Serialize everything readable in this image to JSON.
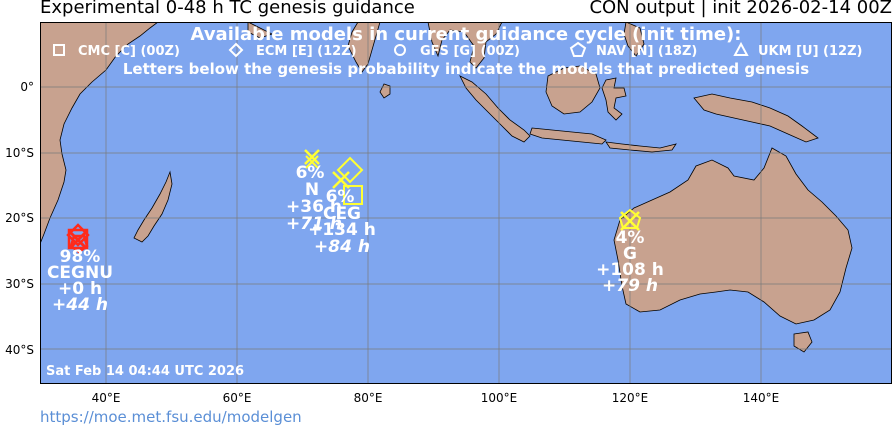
{
  "title": {
    "left": "Experimental 0-48 h TC genesis guidance",
    "right": "CON output | init 2026-02-14 00Z"
  },
  "legend": {
    "heading": "Available models in current guidance cycle (init time):",
    "models": [
      {
        "symbol": "square",
        "label": "CMC [C] (00Z)"
      },
      {
        "symbol": "diamond",
        "label": "ECM [E] (12Z)"
      },
      {
        "symbol": "circle",
        "label": "GFS [G] (00Z)"
      },
      {
        "symbol": "pentagon",
        "label": "NAV [N] (18Z)"
      },
      {
        "symbol": "triangle",
        "label": "UKM [U] (12Z)"
      }
    ],
    "note": "Letters below the genesis probability indicate the models that predicted genesis"
  },
  "axes": {
    "x_ticks": [
      "40°E",
      "60°E",
      "80°E",
      "100°E",
      "120°E",
      "140°E"
    ],
    "y_ticks": [
      "0°",
      "10°S",
      "20°S",
      "30°S",
      "40°S"
    ]
  },
  "timestamp": "Sat Feb 14 04:44 UTC 2026",
  "url": "https://moe.met.fsu.edu/modelgen",
  "colors": {
    "ocean": "#7fa6ef",
    "land": "#c8a28f",
    "high_prob": "#ff2a1a",
    "low_prob": "#ffff33",
    "grid": "#7a7a7a"
  },
  "systems": [
    {
      "probability": "98%",
      "models": "CEGNU",
      "lead": "+0 h",
      "lead_italic": "+44 h",
      "lon": 36.0,
      "lat": -23.3
    },
    {
      "probability": "6%",
      "models": "N",
      "lead": "+36 h",
      "lead_italic": "+71 h",
      "lon": 71.4,
      "lat": -11.0
    },
    {
      "probability": "6%",
      "models": "CEG",
      "lead": "+134 h",
      "lead_italic": "+84 h",
      "lon": 76.5,
      "lat": -14.8
    },
    {
      "probability": "4%",
      "models": "G",
      "lead": "+108 h",
      "lead_italic": "+79 h",
      "lon": 120.0,
      "lat": -20.0
    }
  ]
}
